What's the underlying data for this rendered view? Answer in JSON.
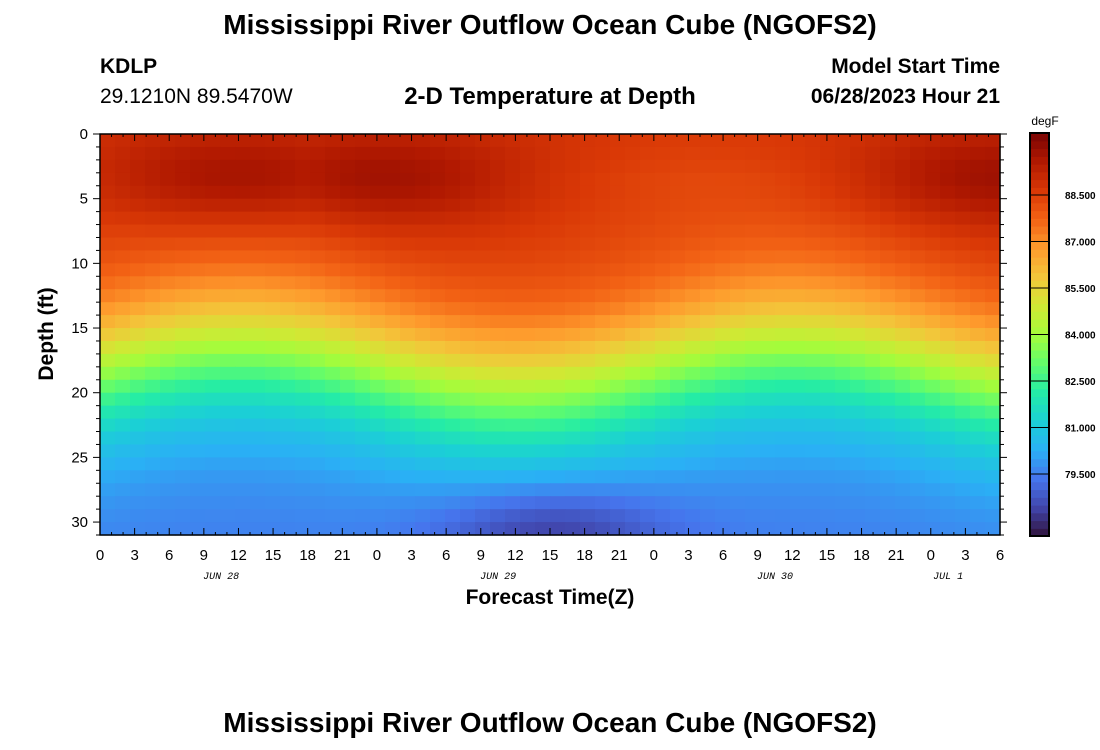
{
  "header": {
    "title": "Mississippi River Outflow Ocean Cube (NGOFS2)",
    "station_id": "KDLP",
    "station_coords": "29.1210N  89.5470W",
    "plot_title": "2-D Temperature at Depth",
    "model_start_label": "Model Start Time",
    "model_start_value": "06/28/2023 Hour 21"
  },
  "footer": {
    "title": "Mississippi River Outflow Ocean Cube (NGOFS2)"
  },
  "chart_data": {
    "type": "heatmap",
    "title": "2-D Temperature at Depth",
    "xlabel": "Forecast Time(Z)",
    "ylabel": "Depth (ft)",
    "x_tick_labels": [
      "0",
      "3",
      "6",
      "9",
      "12",
      "15",
      "18",
      "21",
      "0",
      "3",
      "6",
      "9",
      "12",
      "15",
      "18",
      "21",
      "0",
      "3",
      "6",
      "9",
      "12",
      "15",
      "18",
      "21",
      "0",
      "3",
      "6"
    ],
    "x_date_labels": [
      {
        "label": "JUN 28",
        "tick_index": 3.5
      },
      {
        "label": "JUN 29",
        "tick_index": 11.5
      },
      {
        "label": "JUN 30",
        "tick_index": 19.5
      },
      {
        "label": "JUL 1",
        "tick_index": 24.5
      }
    ],
    "x_range_hours": [
      0,
      78
    ],
    "y_ticks": [
      0,
      5,
      10,
      15,
      20,
      25,
      30
    ],
    "y_range": [
      0,
      31
    ],
    "y_inverted": true,
    "colorbar": {
      "unit": "degF",
      "range": [
        77.5,
        90.5
      ],
      "tick_values": [
        88.5,
        87.0,
        85.5,
        84.0,
        82.5,
        81.0,
        79.5
      ],
      "tick_labels": [
        "88.500",
        "87.000",
        "85.500",
        "84.000",
        "82.500",
        "81.000",
        "79.500"
      ],
      "colormap_stops": [
        "#30123b",
        "#4145ab",
        "#4675ed",
        "#2ab0f5",
        "#1bd0d5",
        "#24eca6",
        "#61fc6c",
        "#a4fc3b",
        "#d1e834",
        "#f3c63a",
        "#fe9b2d",
        "#f36315",
        "#d93806",
        "#b11901",
        "#7a0403"
      ]
    },
    "field_summary": {
      "surface_max_degF": 90.0,
      "bottom_min_degF": 78.0,
      "warm_maxima_hours": [
        12,
        24,
        78
      ],
      "cold_bottom_hour": 39
    }
  }
}
